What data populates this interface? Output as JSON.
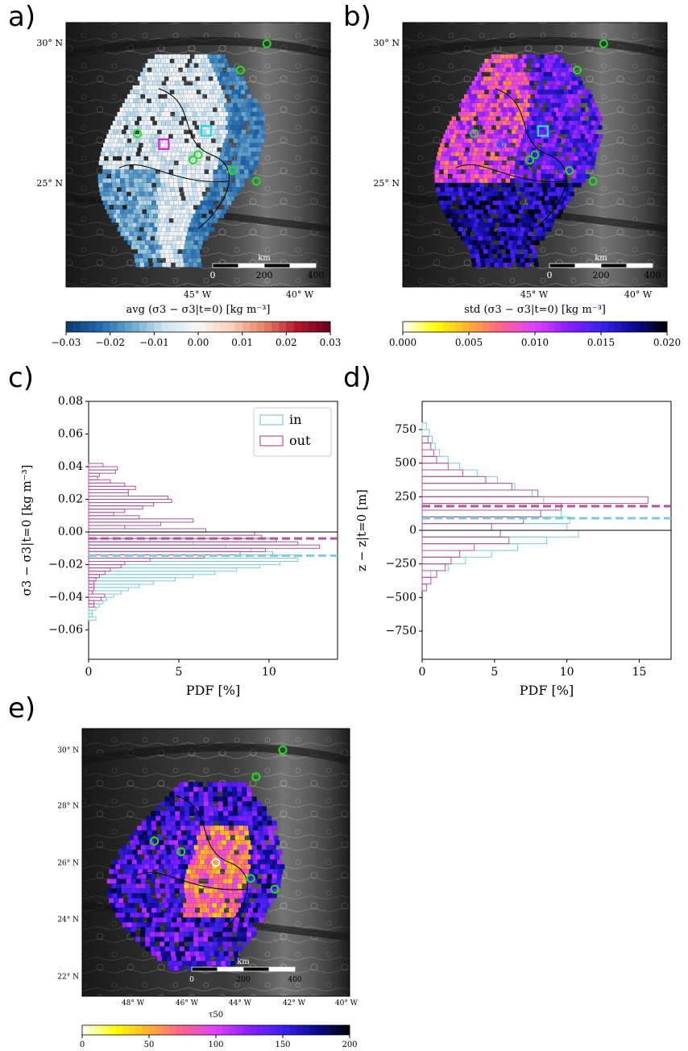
{
  "panels": {
    "a": {
      "label": "a)"
    },
    "b": {
      "label": "b)"
    },
    "c": {
      "label": "c)"
    },
    "d": {
      "label": "d)"
    },
    "e": {
      "label": "e)"
    }
  },
  "chart_data": [
    {
      "id": "a",
      "type": "heatmap",
      "lat_ticks": [
        "30° N",
        "25° N"
      ],
      "lon_ticks": [
        "45° W",
        "40° W"
      ],
      "scalebar": {
        "unit": "km",
        "ticks": [
          "0",
          "200",
          "400"
        ]
      },
      "colorbar": {
        "label": "avg (σ3 − σ3|t=0) [kg m⁻³]",
        "ticks": [
          "−0.03",
          "−0.02",
          "−0.01",
          "0.00",
          "0.01",
          "0.02",
          "0.03"
        ],
        "range": [
          -0.03,
          0.03
        ],
        "colormap": "RdBu_r",
        "stops": [
          "#0b3b6e",
          "#2166ac",
          "#6aa9d0",
          "#d1e5f0",
          "#f7f7f7",
          "#fbd0b9",
          "#e58267",
          "#b2182b",
          "#67001f"
        ]
      }
    },
    {
      "id": "b",
      "type": "heatmap",
      "lat_ticks": [
        "30° N",
        "25° N"
      ],
      "lon_ticks": [
        "45° W",
        "40° W"
      ],
      "scalebar": {
        "unit": "km",
        "ticks": [
          "0",
          "200",
          "400"
        ]
      },
      "colorbar": {
        "label": "std (σ3 − σ3|t=0) [kg m⁻³]",
        "ticks": [
          "0.000",
          "0.005",
          "0.010",
          "0.015",
          "0.020"
        ],
        "range": [
          0,
          0.02
        ],
        "colormap": "gnuplot2_r",
        "stops": [
          "#ffffff",
          "#ffff00",
          "#ffb030",
          "#ff6090",
          "#e040ff",
          "#8a1eff",
          "#3a20f0",
          "#0a0a90",
          "#000000"
        ]
      }
    },
    {
      "id": "c",
      "type": "histogram",
      "ylabel": "σ3 − σ3|t=0 [kg m⁻³]",
      "xlabel": "PDF [%]",
      "xlim": [
        0,
        13.8
      ],
      "ylim": [
        -0.078,
        0.08
      ],
      "xticks": [
        "0",
        "5",
        "10"
      ],
      "yticks": [
        "0.08",
        "0.06",
        "0.04",
        "0.02",
        "0.00",
        "−0.02",
        "−0.04",
        "−0.06"
      ],
      "legend": "top-right",
      "series": [
        {
          "name": "in",
          "color": "#7fcbdc",
          "mean_line": -0.0145,
          "bins": [
            -0.053,
            -0.051,
            -0.049,
            -0.047,
            -0.045,
            -0.043,
            -0.041,
            -0.039,
            -0.037,
            -0.035,
            -0.033,
            -0.031,
            -0.029,
            -0.027,
            -0.025,
            -0.023,
            -0.021,
            -0.019,
            -0.017,
            -0.015,
            -0.013,
            -0.011,
            -0.009,
            -0.007,
            -0.005,
            -0.003
          ],
          "values": [
            0.4,
            0.2,
            0.2,
            0.4,
            0.6,
            0.8,
            1.0,
            1.4,
            1.8,
            2.2,
            2.8,
            3.6,
            4.8,
            5.8,
            7.0,
            8.2,
            9.5,
            10.6,
            11.6,
            11.4,
            10.2,
            9.0,
            7.6,
            5.8,
            3.4,
            1.4
          ]
        },
        {
          "name": "out",
          "color": "#b4549a",
          "mean_line": -0.004,
          "bins": [
            0.041,
            0.039,
            0.037,
            0.035,
            0.033,
            0.031,
            0.029,
            0.027,
            0.025,
            0.023,
            0.021,
            0.019,
            0.017,
            0.015,
            0.013,
            0.011,
            0.009,
            0.007,
            0.005,
            0.003,
            0.001,
            -0.001,
            -0.003,
            -0.005,
            -0.007,
            -0.009,
            -0.011,
            -0.013,
            -0.015,
            -0.017,
            -0.019,
            -0.021,
            -0.023,
            -0.025,
            -0.027,
            -0.029,
            -0.031,
            -0.033,
            -0.035,
            -0.037,
            -0.039,
            -0.041,
            -0.043,
            -0.045
          ],
          "values": [
            0.8,
            1.6,
            1.5,
            0.6,
            0.5,
            1.2,
            2.0,
            2.6,
            2.2,
            2.2,
            4.4,
            4.6,
            3.6,
            3.0,
            2.0,
            1.4,
            2.8,
            5.8,
            4.0,
            2.0,
            6.5,
            9.2,
            9.6,
            10.4,
            11.6,
            12.8,
            9.8,
            8.4,
            6.4,
            3.4,
            2.0,
            1.8,
            1.2,
            0.9,
            0.6,
            0.4,
            0.3,
            0.3,
            0.3,
            0.2,
            0.9,
            0.7,
            0.3,
            0.3
          ]
        }
      ]
    },
    {
      "id": "d",
      "type": "histogram",
      "ylabel": "z − z|t=0 [m]",
      "xlabel": "PDF [%]",
      "xlim": [
        0,
        17.2
      ],
      "ylim": [
        -960,
        960
      ],
      "xticks": [
        "0",
        "5",
        "10",
        "15"
      ],
      "yticks": [
        "750",
        "500",
        "250",
        "0",
        "−250",
        "−500",
        "−750"
      ],
      "series": [
        {
          "name": "in",
          "color": "#7fcbdc",
          "mean_line": 90,
          "bins": [
            775,
            725,
            675,
            625,
            575,
            525,
            475,
            425,
            375,
            325,
            275,
            225,
            175,
            125,
            75,
            25,
            -25,
            -75,
            -125,
            -175,
            -225,
            -275,
            -325
          ],
          "values": [
            0.3,
            0.5,
            0.7,
            0.9,
            1.2,
            1.8,
            2.6,
            3.8,
            5.2,
            6.4,
            7.6,
            8.4,
            9.2,
            9.6,
            10.2,
            10.0,
            10.8,
            8.6,
            6.6,
            4.8,
            3.0,
            1.8,
            0.6
          ]
        },
        {
          "name": "out",
          "color": "#b4549a",
          "mean_line": 180,
          "bins": [
            675,
            625,
            575,
            525,
            475,
            425,
            375,
            325,
            275,
            225,
            175,
            125,
            75,
            25,
            -25,
            -75,
            -125,
            -175,
            -225,
            -275,
            -325,
            -375,
            -425
          ],
          "values": [
            0.4,
            0.6,
            0.8,
            1.0,
            1.8,
            2.8,
            4.4,
            6.2,
            8.0,
            15.6,
            9.6,
            8.2,
            7.0,
            4.8,
            5.4,
            6.0,
            3.6,
            2.6,
            2.0,
            1.6,
            1.0,
            0.6,
            0.3
          ]
        }
      ]
    },
    {
      "id": "e",
      "type": "heatmap",
      "lat_ticks": [
        "30° N",
        "28° N",
        "26° N",
        "24° N",
        "22° N"
      ],
      "lon_ticks": [
        "48° W",
        "46° W",
        "44° W",
        "42° W",
        "40° W"
      ],
      "scalebar": {
        "unit": "km",
        "ticks": [
          "0",
          "200",
          "400"
        ]
      },
      "colorbar": {
        "label": "τ50",
        "ticks": [
          "0",
          "50",
          "100",
          "150",
          "200"
        ],
        "range": [
          0,
          200
        ],
        "colormap": "gnuplot2_r",
        "stops": [
          "#ffffff",
          "#ffff00",
          "#ffb030",
          "#ff6090",
          "#e040ff",
          "#8a1eff",
          "#3a20f0",
          "#0a0a90",
          "#000000"
        ]
      }
    }
  ]
}
